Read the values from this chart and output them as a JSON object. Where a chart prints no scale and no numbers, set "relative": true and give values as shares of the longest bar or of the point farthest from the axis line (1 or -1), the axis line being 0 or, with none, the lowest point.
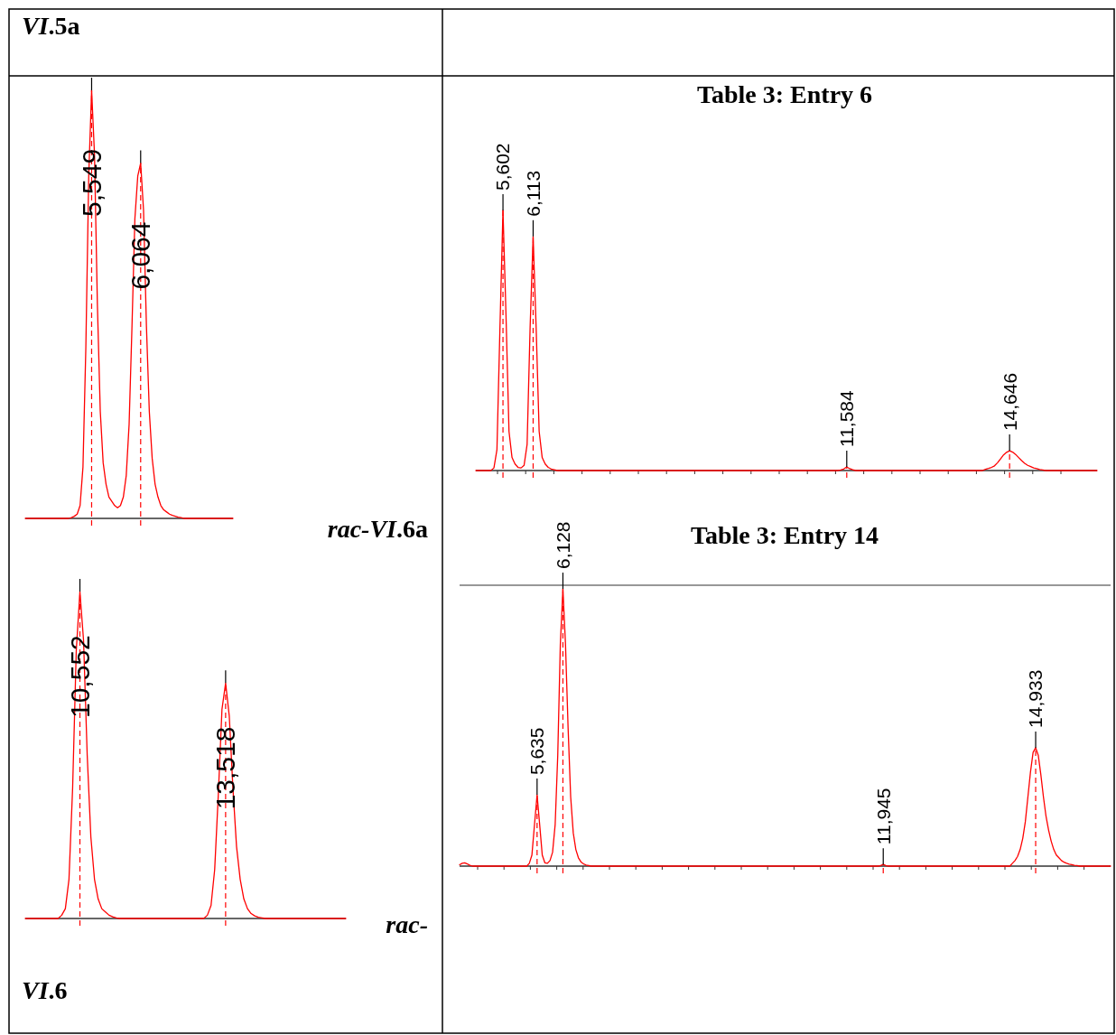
{
  "chart_data": [
    {
      "type": "line",
      "title": "VI.5a",
      "relative": true,
      "color": "#ff0000",
      "categories": [
        null,
        null,
        null,
        null,
        null,
        null,
        null,
        null,
        null,
        null,
        null,
        null,
        null,
        null,
        null,
        null,
        null,
        null,
        null,
        null,
        null,
        null,
        null,
        null,
        null,
        null,
        null,
        null,
        null,
        null,
        null,
        null,
        null,
        null,
        null,
        null,
        null,
        null,
        null,
        null,
        null,
        null,
        null,
        null,
        null,
        null,
        null,
        null,
        null,
        null,
        null,
        null,
        null,
        null,
        null,
        null,
        null,
        null,
        null,
        null,
        null,
        null,
        null,
        null,
        null,
        null,
        null,
        null,
        null,
        null,
        null,
        null,
        null
      ],
      "values": [
        0,
        0,
        0,
        0,
        0,
        0,
        0,
        0,
        0,
        0,
        0,
        0,
        0,
        0,
        0,
        0,
        0.002,
        0.005,
        0.01,
        0.03,
        0.12,
        0.4,
        0.8,
        1,
        0.85,
        0.5,
        0.25,
        0.13,
        0.08,
        0.05,
        0.04,
        0.03,
        0.025,
        0.03,
        0.05,
        0.1,
        0.22,
        0.45,
        0.7,
        0.8,
        0.83,
        0.72,
        0.45,
        0.25,
        0.14,
        0.08,
        0.05,
        0.03,
        0.02,
        0.015,
        0.01,
        0.007,
        0.005,
        0.003,
        0.002,
        0,
        0,
        0,
        0,
        0,
        0,
        0,
        0,
        0,
        0,
        0,
        0,
        0,
        0,
        0,
        0,
        0,
        0
      ],
      "annotations": [
        {
          "text": "5,549",
          "y": 1
        },
        {
          "text": "6,064",
          "y": 0.83
        },
        "rac-VI.6a"
      ]
    },
    {
      "type": "line",
      "relative": true,
      "color": "#ff0000",
      "categories": [
        null,
        null,
        null,
        null,
        null,
        null,
        null,
        null,
        null,
        null,
        null,
        null,
        null,
        null,
        null,
        null,
        null,
        null,
        null,
        null,
        null,
        null,
        null,
        null,
        null,
        null,
        null,
        null,
        null,
        null,
        null,
        null,
        null,
        null,
        null,
        null,
        null,
        null,
        null,
        null,
        null,
        null,
        null,
        null,
        null,
        null,
        null,
        null,
        null,
        null,
        null,
        null,
        null,
        null,
        null,
        null,
        null,
        null,
        null,
        null,
        null,
        null,
        null,
        null,
        null,
        null,
        null,
        null,
        null,
        null,
        null,
        null,
        null,
        null,
        null,
        null,
        null,
        null,
        null,
        null,
        null,
        null,
        null,
        null,
        null,
        null,
        null,
        null,
        null
      ],
      "values": [
        0,
        0,
        0,
        0,
        0,
        0,
        0,
        0,
        0,
        0,
        0.01,
        0.03,
        0.12,
        0.4,
        0.82,
        1,
        0.85,
        0.5,
        0.25,
        0.12,
        0.06,
        0.03,
        0.02,
        0.01,
        0.005,
        0.002,
        0,
        0,
        0,
        0,
        0,
        0,
        0,
        0,
        0,
        0,
        0,
        0,
        0,
        0,
        0,
        0,
        0,
        0,
        0,
        0,
        0,
        0,
        0,
        0,
        0.01,
        0.04,
        0.15,
        0.38,
        0.64,
        0.72,
        0.62,
        0.4,
        0.22,
        0.12,
        0.06,
        0.03,
        0.015,
        0.008,
        0.004,
        0.002,
        0,
        0,
        0,
        0,
        0,
        0,
        0,
        0,
        0,
        0,
        0,
        0,
        0,
        0,
        0,
        0,
        0,
        0,
        0,
        0,
        0,
        0,
        0
      ],
      "annotations": [
        {
          "text": "10,552",
          "y": 1
        },
        {
          "text": "13,518",
          "y": 0.72
        },
        "rac-VI.6"
      ]
    },
    {
      "type": "line",
      "title": "Table 3: Entry 6",
      "relative": true,
      "color": "#ff0000",
      "categories": [
        null,
        null,
        null,
        null,
        null,
        null,
        null,
        null,
        null,
        null,
        null,
        null,
        null,
        null,
        null,
        null,
        null,
        null,
        null,
        null,
        null,
        null,
        null,
        null,
        null,
        null,
        null,
        null,
        null,
        null,
        null,
        null,
        null,
        null,
        null,
        null,
        null,
        null,
        null,
        null,
        null,
        null,
        null,
        null,
        null,
        null,
        null,
        null,
        null,
        null,
        null,
        null,
        null,
        null,
        null,
        null,
        null,
        null,
        null,
        null,
        null,
        null,
        null,
        null,
        null,
        null,
        null,
        null,
        null,
        null,
        null,
        null,
        null,
        null,
        null,
        null,
        null,
        null,
        null,
        null,
        null,
        null,
        null,
        null,
        null,
        null,
        null,
        null,
        null,
        null,
        null,
        null,
        null,
        null,
        null,
        null,
        null,
        null,
        null,
        null,
        null,
        null,
        null,
        null,
        null,
        null,
        null,
        null,
        null,
        null,
        null,
        null,
        null,
        null,
        null,
        null,
        null,
        null,
        null,
        null,
        null,
        null,
        null,
        null,
        null,
        null,
        null,
        null,
        null,
        null,
        null,
        null,
        null,
        null,
        null,
        null,
        null,
        null,
        null,
        null,
        null,
        null,
        null,
        null,
        null,
        null,
        null,
        null,
        null,
        null,
        null,
        null,
        null,
        null,
        null,
        null,
        null,
        null,
        null,
        null,
        null,
        null,
        null,
        null,
        null,
        null,
        null,
        null,
        null,
        null,
        null,
        null,
        null,
        null,
        null,
        null,
        null,
        null,
        null,
        null,
        null,
        null,
        null,
        null,
        null,
        null,
        null,
        null,
        null,
        null,
        null,
        null,
        null,
        null,
        null,
        null,
        null,
        null,
        null,
        null,
        null,
        null,
        null,
        null,
        null,
        null,
        null
      ],
      "values": [
        0,
        0,
        0,
        0,
        0,
        0,
        0.01,
        0.08,
        0.55,
        1,
        0.6,
        0.15,
        0.05,
        0.025,
        0.012,
        0.01,
        0.02,
        0.1,
        0.55,
        0.9,
        0.55,
        0.15,
        0.05,
        0.025,
        0.012,
        0.006,
        0.003,
        0,
        0,
        0,
        0,
        0,
        0,
        0,
        0,
        0,
        0,
        0,
        0,
        0,
        0,
        0,
        0,
        0,
        0,
        0,
        0,
        0,
        0,
        0,
        0,
        0,
        0,
        0,
        0,
        0,
        0,
        0,
        0,
        0,
        0,
        0,
        0,
        0,
        0,
        0,
        0,
        0,
        0,
        0,
        0,
        0,
        0,
        0,
        0,
        0,
        0,
        0,
        0,
        0,
        0,
        0,
        0,
        0,
        0,
        0,
        0,
        0,
        0,
        0,
        0,
        0,
        0,
        0,
        0,
        0,
        0,
        0,
        0,
        0,
        0,
        0,
        0,
        0,
        0,
        0,
        0,
        0,
        0,
        0,
        0,
        0,
        0,
        0,
        0,
        0,
        0,
        0,
        0,
        0,
        0,
        0.002,
        0.006,
        0.014,
        0.007,
        0.003,
        0,
        0,
        0,
        0,
        0,
        0,
        0,
        0,
        0,
        0,
        0,
        0,
        0,
        0,
        0,
        0,
        0,
        0,
        0,
        0,
        0,
        0,
        0,
        0,
        0,
        0,
        0,
        0,
        0,
        0,
        0,
        0,
        0,
        0,
        0,
        0,
        0,
        0,
        0,
        0,
        0,
        0,
        0,
        0.005,
        0.008,
        0.012,
        0.018,
        0.03,
        0.045,
        0.06,
        0.07,
        0.076,
        0.071,
        0.062,
        0.05,
        0.038,
        0.028,
        0.02,
        0.015,
        0.01,
        0.007,
        0.004,
        0.002,
        0,
        0,
        0,
        0,
        0,
        0,
        0,
        0,
        0,
        0,
        0,
        0,
        0,
        0,
        0,
        0,
        0,
        0
      ],
      "annotations": [
        {
          "text": "5,602",
          "y": 1
        },
        {
          "text": "6,113",
          "y": 0.9
        },
        {
          "text": "11,584",
          "y": 0.014
        },
        {
          "text": "14,646",
          "y": 0.076
        }
      ]
    },
    {
      "type": "line",
      "title": "Table 3: Entry 14",
      "relative": true,
      "color": "#ff0000",
      "categories": [
        null,
        null,
        null,
        null,
        null,
        null,
        null,
        null,
        null,
        null,
        null,
        null,
        null,
        null,
        null,
        null,
        null,
        null,
        null,
        null,
        null,
        null,
        null,
        null,
        null,
        null,
        null,
        null,
        null,
        null,
        null,
        null,
        null,
        null,
        null,
        null,
        null,
        null,
        null,
        null,
        null,
        null,
        null,
        null,
        null,
        null,
        null,
        null,
        null,
        null,
        null,
        null,
        null,
        null,
        null,
        null,
        null,
        null,
        null,
        null,
        null,
        null,
        null,
        null,
        null,
        null,
        null,
        null,
        null,
        null,
        null,
        null,
        null,
        null,
        null,
        null,
        null,
        null,
        null,
        null,
        null,
        null,
        null,
        null,
        null,
        null,
        null,
        null,
        null,
        null,
        null,
        null,
        null,
        null,
        null,
        null,
        null,
        null,
        null,
        null,
        null,
        null,
        null,
        null,
        null,
        null,
        null,
        null,
        null,
        null,
        null,
        null,
        null,
        null,
        null,
        null,
        null,
        null,
        null,
        null,
        null,
        null,
        null,
        null,
        null,
        null,
        null,
        null,
        null,
        null,
        null,
        null,
        null,
        null,
        null,
        null,
        null,
        null,
        null,
        null,
        null,
        null,
        null,
        null,
        null,
        null,
        null,
        null,
        null,
        null,
        null,
        null,
        null,
        null,
        null,
        null,
        null,
        null,
        null,
        null,
        null,
        null,
        null,
        null,
        null,
        null,
        null,
        null,
        null,
        null,
        null,
        null,
        null,
        null,
        null,
        null,
        null,
        null,
        null,
        null,
        null,
        null,
        null,
        null,
        null,
        null,
        null,
        null,
        null,
        null,
        null,
        null,
        null,
        null,
        null,
        null,
        null,
        null,
        null,
        null,
        null,
        null,
        null,
        null,
        null,
        null,
        null,
        null,
        null,
        null,
        null,
        null,
        null,
        null,
        null,
        null,
        null,
        null,
        null,
        null,
        null,
        null,
        null,
        null,
        null,
        null,
        null,
        null,
        null,
        null,
        null,
        null,
        null,
        null,
        null,
        null,
        null,
        null,
        null,
        null,
        null,
        null,
        null,
        null,
        null,
        null,
        null,
        null,
        null,
        null,
        null,
        null,
        null
      ],
      "values": [
        0.005,
        0.01,
        0.012,
        0.008,
        0.003,
        0,
        0,
        0,
        0,
        0,
        0,
        0,
        0,
        0,
        0,
        0,
        0,
        0,
        0,
        0,
        0,
        0,
        0,
        0,
        0,
        0,
        0,
        0.01,
        0.04,
        0.15,
        0.257,
        0.15,
        0.04,
        0.012,
        0.01,
        0.02,
        0.05,
        0.15,
        0.4,
        0.8,
        1,
        0.8,
        0.5,
        0.25,
        0.12,
        0.06,
        0.03,
        0.015,
        0.008,
        0.004,
        0.002,
        0,
        0,
        0,
        0,
        0,
        0,
        0,
        0,
        0,
        0,
        0,
        0,
        0,
        0,
        0,
        0,
        0,
        0,
        0,
        0,
        0,
        0,
        0,
        0,
        0,
        0,
        0,
        0,
        0,
        0,
        0,
        0,
        0,
        0,
        0,
        0,
        0,
        0,
        0,
        0,
        0,
        0,
        0,
        0,
        0,
        0,
        0,
        0,
        0,
        0,
        0,
        0,
        0,
        0,
        0,
        0,
        0,
        0,
        0,
        0,
        0,
        0,
        0,
        0,
        0,
        0,
        0,
        0,
        0,
        0,
        0,
        0,
        0,
        0,
        0,
        0,
        0,
        0,
        0,
        0,
        0,
        0,
        0,
        0,
        0,
        0,
        0,
        0,
        0,
        0,
        0,
        0,
        0,
        0,
        0,
        0,
        0,
        0,
        0,
        0,
        0,
        0,
        0,
        0,
        0,
        0,
        0,
        0,
        0,
        0,
        0,
        0,
        0.002,
        0.006,
        0.002,
        0,
        0,
        0,
        0,
        0,
        0,
        0,
        0,
        0,
        0,
        0,
        0,
        0,
        0,
        0,
        0,
        0,
        0,
        0,
        0,
        0,
        0,
        0,
        0,
        0,
        0,
        0,
        0,
        0,
        0,
        0,
        0,
        0,
        0,
        0,
        0,
        0,
        0,
        0,
        0,
        0,
        0,
        0,
        0,
        0,
        0,
        0,
        0,
        0.01,
        0.02,
        0.035,
        0.06,
        0.1,
        0.16,
        0.25,
        0.34,
        0.41,
        0.427,
        0.4,
        0.33,
        0.25,
        0.18,
        0.13,
        0.09,
        0.06,
        0.04,
        0.03,
        0.02,
        0.014,
        0.01,
        0.007,
        0.005,
        0.003,
        0.002,
        0,
        0,
        0,
        0,
        0,
        0,
        0,
        0,
        0,
        0,
        0,
        0,
        0
      ],
      "annotations": [
        {
          "text": "5,635",
          "y": 0.257
        },
        {
          "text": "6,128",
          "y": 1
        },
        {
          "text": "11,945",
          "y": 0.006
        },
        {
          "text": "14,933",
          "y": 0.427
        }
      ]
    }
  ]
}
